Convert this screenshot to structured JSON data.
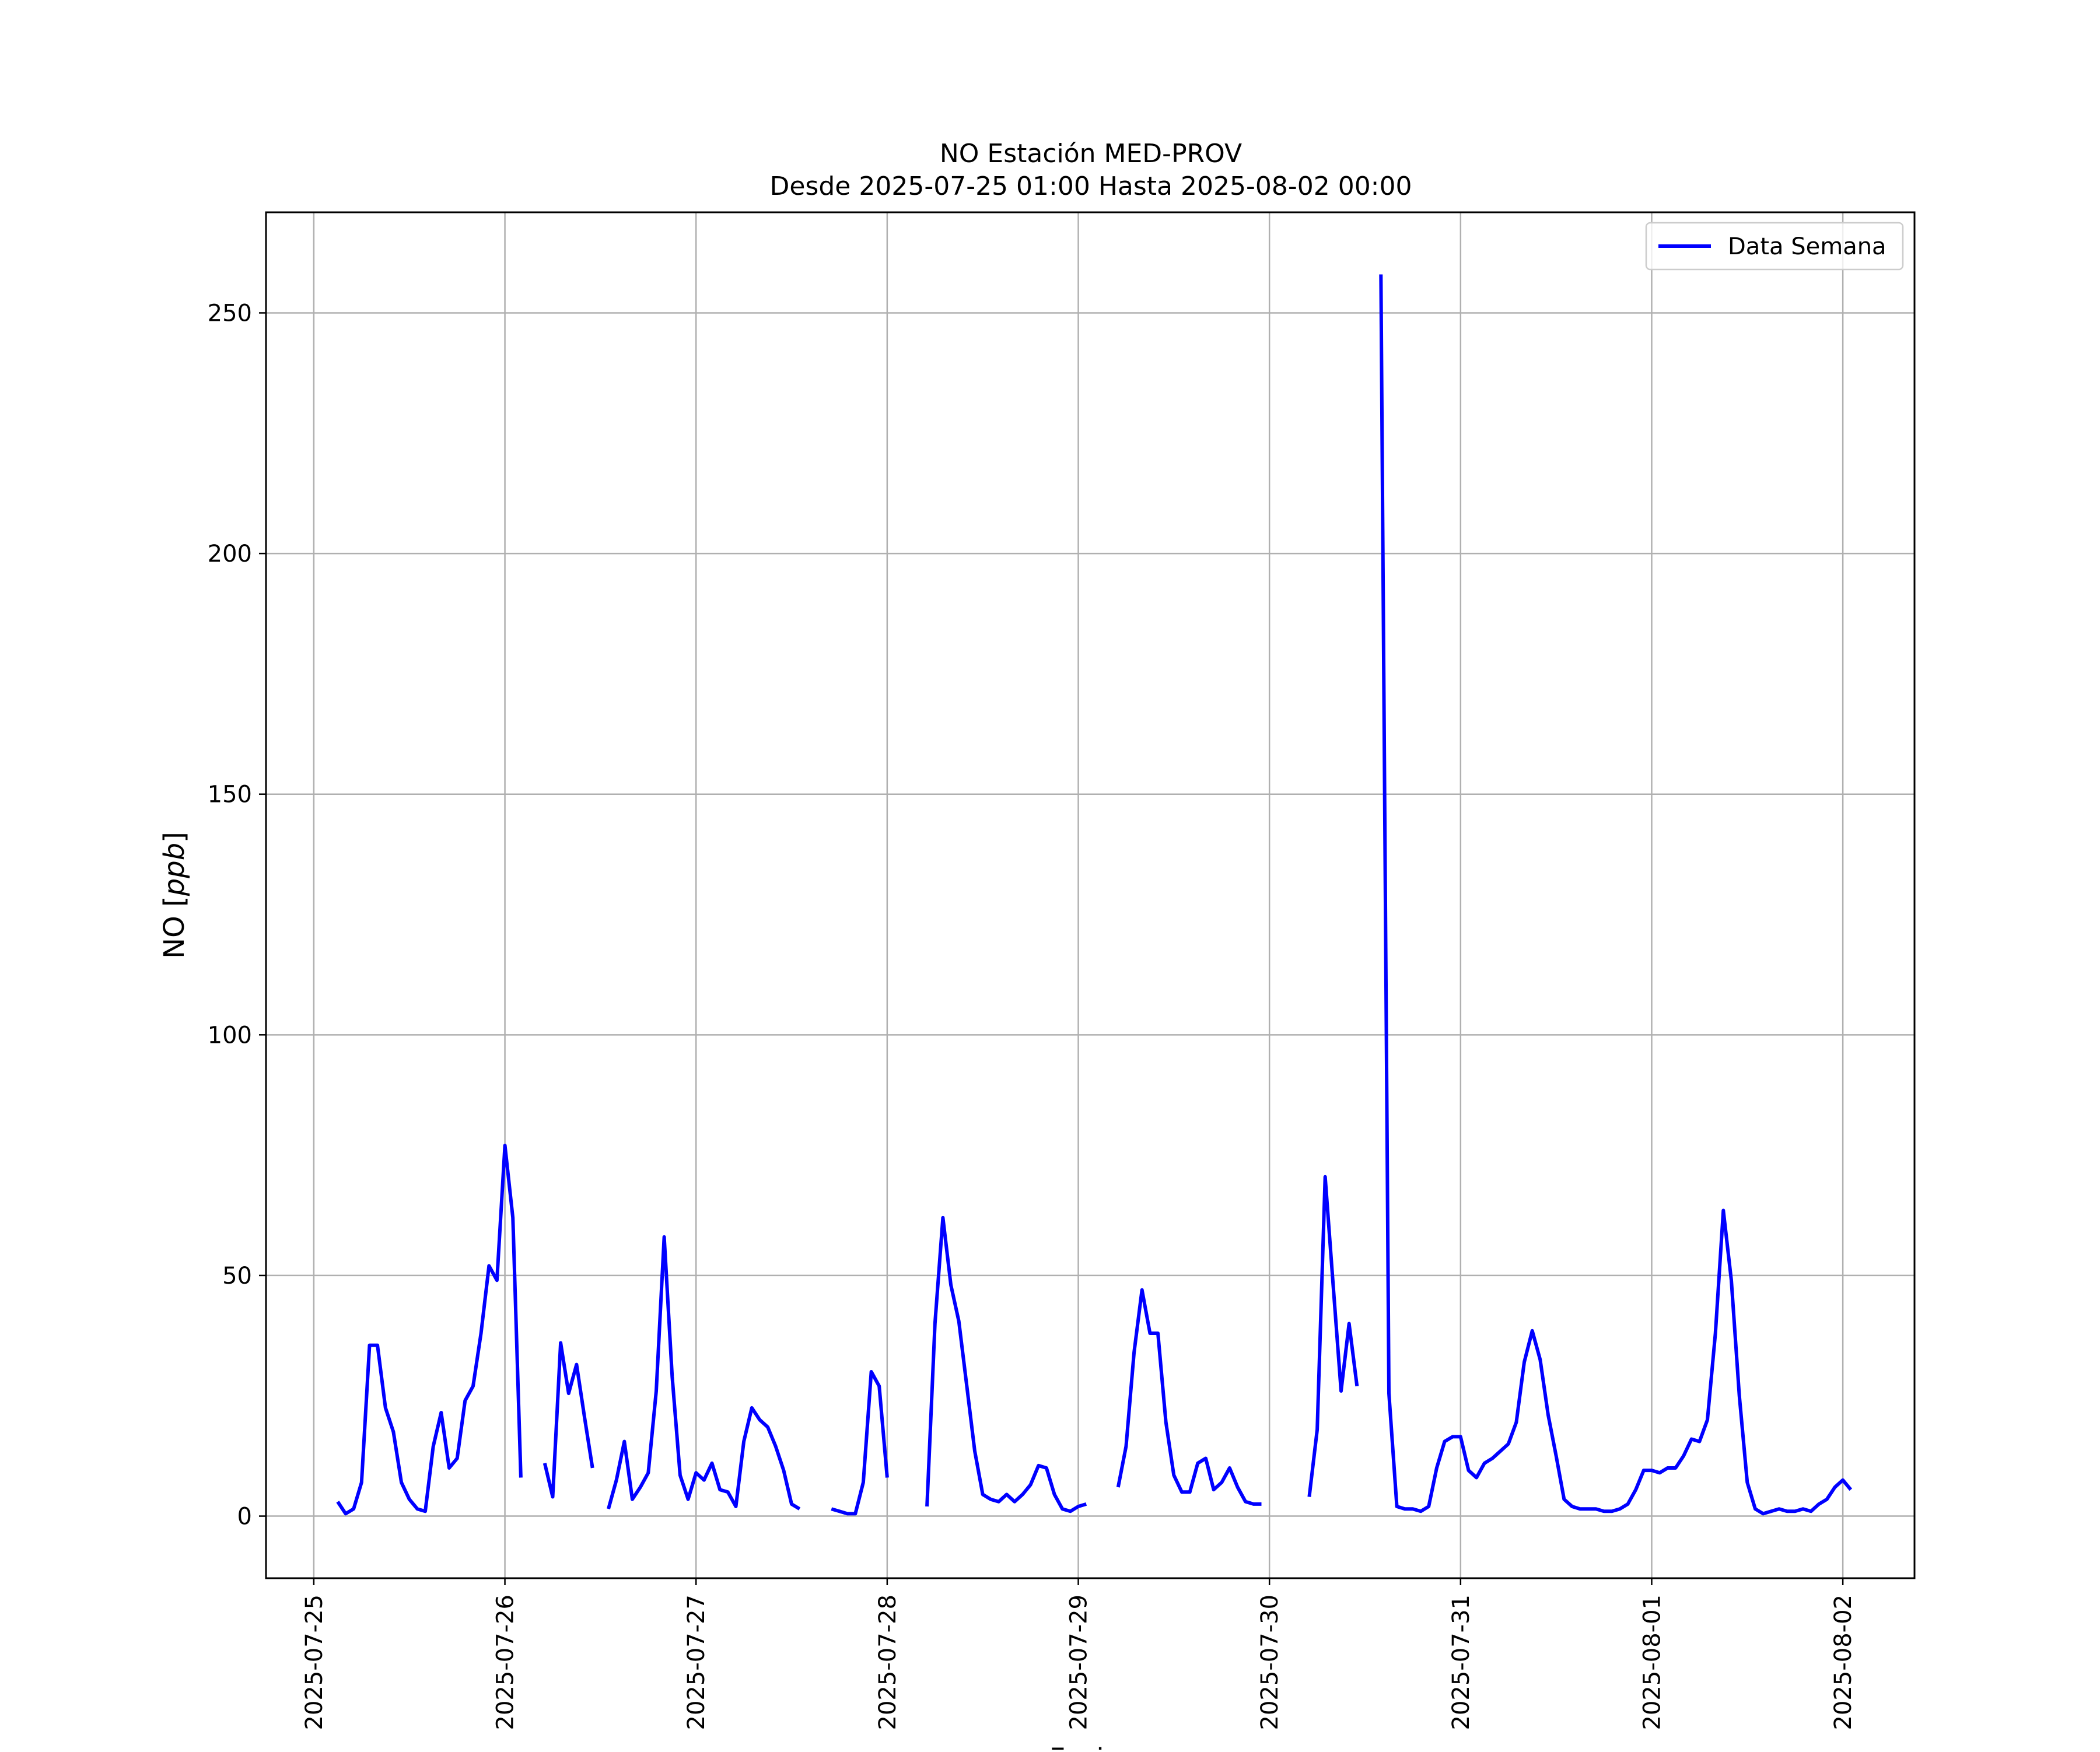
{
  "chart_data": {
    "type": "line",
    "title": "NO Estación MED-PROV",
    "subtitle": "Desde 2025-07-25 01:00 Hasta 2025-08-02 00:00",
    "xlabel": "Fecha",
    "ylabel": "NO [ppb]",
    "ylabel_parts": {
      "prefix": "NO [",
      "unit": "ppb",
      "suffix": "]"
    },
    "x_ticks": [
      "2025-07-25",
      "2025-07-26",
      "2025-07-27",
      "2025-07-28",
      "2025-07-29",
      "2025-07-30",
      "2025-07-31",
      "2025-08-01",
      "2025-08-02"
    ],
    "y_ticks": [
      0,
      50,
      100,
      150,
      200,
      250
    ],
    "xlim": [
      "2025-07-24 18:00",
      "2025-08-02 09:00"
    ],
    "ylim": [
      -12.9,
      270.9
    ],
    "grid": true,
    "legend_position": "top-right",
    "series": [
      {
        "name": "Data Semana",
        "color": "#0000ff",
        "segments": [
          [
            [
              "2025-07-25 03:00",
              3
            ],
            [
              "2025-07-25 04:00",
              0.5
            ],
            [
              "2025-07-25 05:00",
              1.5
            ],
            [
              "2025-07-25 06:00",
              7
            ],
            [
              "2025-07-25 07:00",
              35.5
            ],
            [
              "2025-07-25 08:00",
              35.5
            ],
            [
              "2025-07-25 09:00",
              22.5
            ],
            [
              "2025-07-25 10:00",
              17.5
            ],
            [
              "2025-07-25 11:00",
              7
            ],
            [
              "2025-07-25 12:00",
              3.5
            ],
            [
              "2025-07-25 13:00",
              1.5
            ],
            [
              "2025-07-25 14:00",
              1
            ],
            [
              "2025-07-25 15:00",
              14.5
            ],
            [
              "2025-07-25 16:00",
              21.5
            ],
            [
              "2025-07-25 17:00",
              10
            ],
            [
              "2025-07-25 18:00",
              12
            ],
            [
              "2025-07-25 19:00",
              24
            ],
            [
              "2025-07-25 20:00",
              27
            ],
            [
              "2025-07-25 21:00",
              38
            ],
            [
              "2025-07-25 22:00",
              52
            ],
            [
              "2025-07-25 23:00",
              49
            ],
            [
              "2025-07-26 00:00",
              77
            ],
            [
              "2025-07-26 01:00",
              62
            ],
            [
              "2025-07-26 02:00",
              8
            ]
          ],
          [
            [
              "2025-07-26 05:00",
              11
            ],
            [
              "2025-07-26 06:00",
              4
            ],
            [
              "2025-07-26 07:00",
              36
            ],
            [
              "2025-07-26 08:00",
              25.5
            ],
            [
              "2025-07-26 09:00",
              31.5
            ],
            [
              "2025-07-26 10:00",
              20.5
            ],
            [
              "2025-07-26 11:00",
              10
            ]
          ],
          [
            [
              "2025-07-26 13:00",
              1.5
            ],
            [
              "2025-07-26 14:00",
              7.5
            ],
            [
              "2025-07-26 15:00",
              15.5
            ],
            [
              "2025-07-26 16:00",
              3.5
            ],
            [
              "2025-07-26 17:00",
              6
            ],
            [
              "2025-07-26 18:00",
              9
            ],
            [
              "2025-07-26 19:00",
              26
            ],
            [
              "2025-07-26 20:00",
              58
            ],
            [
              "2025-07-26 21:00",
              29
            ],
            [
              "2025-07-26 22:00",
              8.5
            ],
            [
              "2025-07-26 23:00",
              3.5
            ],
            [
              "2025-07-27 00:00",
              9
            ],
            [
              "2025-07-27 01:00",
              7.5
            ],
            [
              "2025-07-27 02:00",
              11
            ],
            [
              "2025-07-27 03:00",
              5.5
            ],
            [
              "2025-07-27 04:00",
              5
            ],
            [
              "2025-07-27 05:00",
              2
            ],
            [
              "2025-07-27 06:00",
              15.5
            ],
            [
              "2025-07-27 07:00",
              22.5
            ],
            [
              "2025-07-27 08:00",
              20
            ],
            [
              "2025-07-27 09:00",
              18.5
            ],
            [
              "2025-07-27 10:00",
              14.5
            ],
            [
              "2025-07-27 11:00",
              9.5
            ],
            [
              "2025-07-27 12:00",
              2.5
            ],
            [
              "2025-07-27 13:00",
              1.5
            ]
          ],
          [
            [
              "2025-07-27 17:00",
              1.5
            ],
            [
              "2025-07-27 18:00",
              1
            ],
            [
              "2025-07-27 19:00",
              0.5
            ],
            [
              "2025-07-27 20:00",
              0.5
            ],
            [
              "2025-07-27 21:00",
              7
            ],
            [
              "2025-07-27 22:00",
              30
            ],
            [
              "2025-07-27 23:00",
              27
            ],
            [
              "2025-07-28 00:00",
              8
            ]
          ],
          [
            [
              "2025-07-28 05:00",
              2
            ],
            [
              "2025-07-28 06:00",
              40
            ],
            [
              "2025-07-28 07:00",
              62
            ],
            [
              "2025-07-28 08:00",
              48
            ],
            [
              "2025-07-28 09:00",
              40.5
            ],
            [
              "2025-07-28 10:00",
              27
            ],
            [
              "2025-07-28 11:00",
              13.5
            ],
            [
              "2025-07-28 12:00",
              4.5
            ],
            [
              "2025-07-28 13:00",
              3.5
            ],
            [
              "2025-07-28 14:00",
              3
            ],
            [
              "2025-07-28 15:00",
              4.5
            ],
            [
              "2025-07-28 16:00",
              3
            ],
            [
              "2025-07-28 17:00",
              4.5
            ],
            [
              "2025-07-28 18:00",
              6.5
            ],
            [
              "2025-07-28 19:00",
              10.5
            ],
            [
              "2025-07-28 20:00",
              10
            ],
            [
              "2025-07-28 21:00",
              4.5
            ],
            [
              "2025-07-28 22:00",
              1.5
            ],
            [
              "2025-07-28 23:00",
              1
            ],
            [
              "2025-07-29 00:00",
              2
            ],
            [
              "2025-07-29 01:00",
              2.5
            ]
          ],
          [
            [
              "2025-07-29 05:00",
              6
            ],
            [
              "2025-07-29 06:00",
              14.5
            ],
            [
              "2025-07-29 07:00",
              34
            ],
            [
              "2025-07-29 08:00",
              47
            ],
            [
              "2025-07-29 09:00",
              38
            ],
            [
              "2025-07-29 10:00",
              38
            ],
            [
              "2025-07-29 11:00",
              19.5
            ],
            [
              "2025-07-29 12:00",
              8.5
            ],
            [
              "2025-07-29 13:00",
              5
            ],
            [
              "2025-07-29 14:00",
              5
            ],
            [
              "2025-07-29 15:00",
              11
            ],
            [
              "2025-07-29 16:00",
              12
            ],
            [
              "2025-07-29 17:00",
              5.5
            ],
            [
              "2025-07-29 18:00",
              7
            ],
            [
              "2025-07-29 19:00",
              10
            ],
            [
              "2025-07-29 20:00",
              6
            ],
            [
              "2025-07-29 21:00",
              3
            ],
            [
              "2025-07-29 22:00",
              2.5
            ],
            [
              "2025-07-29 23:00",
              2.5
            ]
          ],
          [
            [
              "2025-07-30 05:00",
              4
            ],
            [
              "2025-07-30 06:00",
              18
            ],
            [
              "2025-07-30 07:00",
              70.5
            ],
            [
              "2025-07-30 08:00",
              48
            ],
            [
              "2025-07-30 09:00",
              26
            ],
            [
              "2025-07-30 10:00",
              40
            ],
            [
              "2025-07-30 11:00",
              27
            ]
          ],
          [
            [
              "2025-07-30 14:00",
              258
            ],
            [
              "2025-07-30 15:00",
              25.5
            ],
            [
              "2025-07-30 16:00",
              2
            ],
            [
              "2025-07-30 17:00",
              1.5
            ],
            [
              "2025-07-30 18:00",
              1.5
            ],
            [
              "2025-07-30 19:00",
              1
            ],
            [
              "2025-07-30 20:00",
              2
            ],
            [
              "2025-07-30 21:00",
              10
            ],
            [
              "2025-07-30 22:00",
              15.5
            ],
            [
              "2025-07-30 23:00",
              16.5
            ],
            [
              "2025-07-31 00:00",
              16.5
            ],
            [
              "2025-07-31 01:00",
              9.5
            ],
            [
              "2025-07-31 02:00",
              8
            ],
            [
              "2025-07-31 03:00",
              11
            ],
            [
              "2025-07-31 04:00",
              12
            ],
            [
              "2025-07-31 05:00",
              13.5
            ],
            [
              "2025-07-31 06:00",
              15
            ],
            [
              "2025-07-31 07:00",
              19.5
            ],
            [
              "2025-07-31 08:00",
              32
            ],
            [
              "2025-07-31 09:00",
              38.5
            ],
            [
              "2025-07-31 10:00",
              32.5
            ],
            [
              "2025-07-31 11:00",
              21
            ],
            [
              "2025-07-31 12:00",
              12.5
            ],
            [
              "2025-07-31 13:00",
              3.5
            ],
            [
              "2025-07-31 14:00",
              2
            ],
            [
              "2025-07-31 15:00",
              1.5
            ],
            [
              "2025-07-31 16:00",
              1.5
            ],
            [
              "2025-07-31 17:00",
              1.5
            ],
            [
              "2025-07-31 18:00",
              1
            ],
            [
              "2025-07-31 19:00",
              1
            ],
            [
              "2025-07-31 20:00",
              1.5
            ],
            [
              "2025-07-31 21:00",
              2.5
            ],
            [
              "2025-07-31 22:00",
              5.5
            ],
            [
              "2025-07-31 23:00",
              9.5
            ],
            [
              "2025-08-01 00:00",
              9.5
            ],
            [
              "2025-08-01 01:00",
              9
            ],
            [
              "2025-08-01 02:00",
              10
            ],
            [
              "2025-08-01 03:00",
              10
            ],
            [
              "2025-08-01 04:00",
              12.5
            ],
            [
              "2025-08-01 05:00",
              16
            ],
            [
              "2025-08-01 06:00",
              15.5
            ],
            [
              "2025-08-01 07:00",
              20
            ],
            [
              "2025-08-01 08:00",
              38
            ],
            [
              "2025-08-01 09:00",
              63.5
            ],
            [
              "2025-08-01 10:00",
              49
            ],
            [
              "2025-08-01 11:00",
              25
            ],
            [
              "2025-08-01 12:00",
              7
            ],
            [
              "2025-08-01 13:00",
              1.5
            ],
            [
              "2025-08-01 14:00",
              0.5
            ],
            [
              "2025-08-01 15:00",
              1
            ],
            [
              "2025-08-01 16:00",
              1.5
            ],
            [
              "2025-08-01 17:00",
              1
            ],
            [
              "2025-08-01 18:00",
              1
            ],
            [
              "2025-08-01 19:00",
              1.5
            ],
            [
              "2025-08-01 20:00",
              1
            ],
            [
              "2025-08-01 21:00",
              2.5
            ],
            [
              "2025-08-01 22:00",
              3.5
            ],
            [
              "2025-08-01 23:00",
              6
            ],
            [
              "2025-08-02 00:00",
              7.5
            ],
            [
              "2025-08-02 01:00",
              5.5
            ]
          ]
        ]
      }
    ]
  }
}
